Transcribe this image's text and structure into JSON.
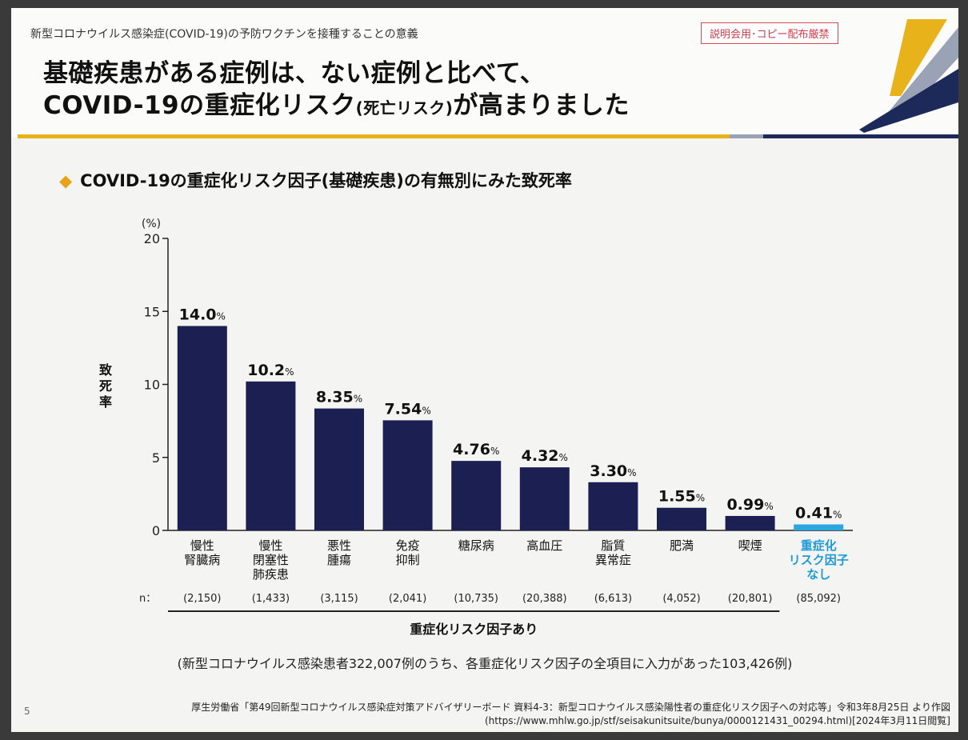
{
  "header": {
    "subtitle": "新型コロナウイルス感染症(COVID-19)の予防ワクチンを接種することの意義",
    "stamp": "説明会用･コピー配布厳禁",
    "headline_line1": "基礎疾患がある症例は、ない症例と比べて、",
    "headline_line2_a": "COVID-19の重症化リスク",
    "headline_line2_b": "(死亡リスク)",
    "headline_line2_c": "が高まりました"
  },
  "section_title": "COVID-19の重症化リスク因子(基礎疾患)の有無別にみた致死率",
  "colors": {
    "bar": "#1b1f52",
    "highlight_bar": "#2aa7df",
    "highlight_text": "#1f9ad6",
    "accent_gold": "#e8b21a",
    "accent_navy": "#1c2a5a"
  },
  "chart_data": {
    "type": "bar",
    "ylabel": "致死率",
    "y_unit": "(%)",
    "ylim": [
      0,
      20
    ],
    "yticks": [
      0,
      5,
      10,
      15,
      20
    ],
    "n_label": "n：",
    "categories": [
      [
        "慢性",
        "腎臓病"
      ],
      [
        "慢性",
        "閉塞性",
        "肺疾患"
      ],
      [
        "悪性",
        "腫瘍"
      ],
      [
        "免疫",
        "抑制"
      ],
      [
        "糖尿病"
      ],
      [
        "高血圧"
      ],
      [
        "脂質",
        "異常症"
      ],
      [
        "肥満"
      ],
      [
        "喫煙"
      ],
      [
        "重症化",
        "リスク因子",
        "なし"
      ]
    ],
    "values": [
      14.0,
      10.2,
      8.35,
      7.54,
      4.76,
      4.32,
      3.3,
      1.55,
      0.99,
      0.41
    ],
    "value_labels": [
      "14.0",
      "10.2",
      "8.35",
      "7.54",
      "4.76",
      "4.32",
      "3.30",
      "1.55",
      "0.99",
      "0.41"
    ],
    "value_unit": "%",
    "n": [
      "(2,150)",
      "(1,433)",
      "(3,115)",
      "(2,041)",
      "(10,735)",
      "(20,388)",
      "(6,613)",
      "(4,052)",
      "(20,801)",
      "(85,092)"
    ],
    "highlight_index": 9,
    "group_label": "重症化リスク因子あり",
    "grid": false,
    "legend": "none"
  },
  "note": "(新型コロナウイルス感染患者322,007例のうち、各重症化リスク因子の全項目に入力があった103,426例)",
  "source_line1": "厚生労働省「第49回新型コロナウイルス感染症対策アドバイザリーボード 資料4-3：新型コロナウイルス感染陽性者の重症化リスク因子への対応等」令和3年8月25日 より作図",
  "source_line2": "(https://www.mhlw.go.jp/stf/seisakunitsuite/bunya/0000121431_00294.html)[2024年3月11日閲覧]",
  "page_number": "5"
}
